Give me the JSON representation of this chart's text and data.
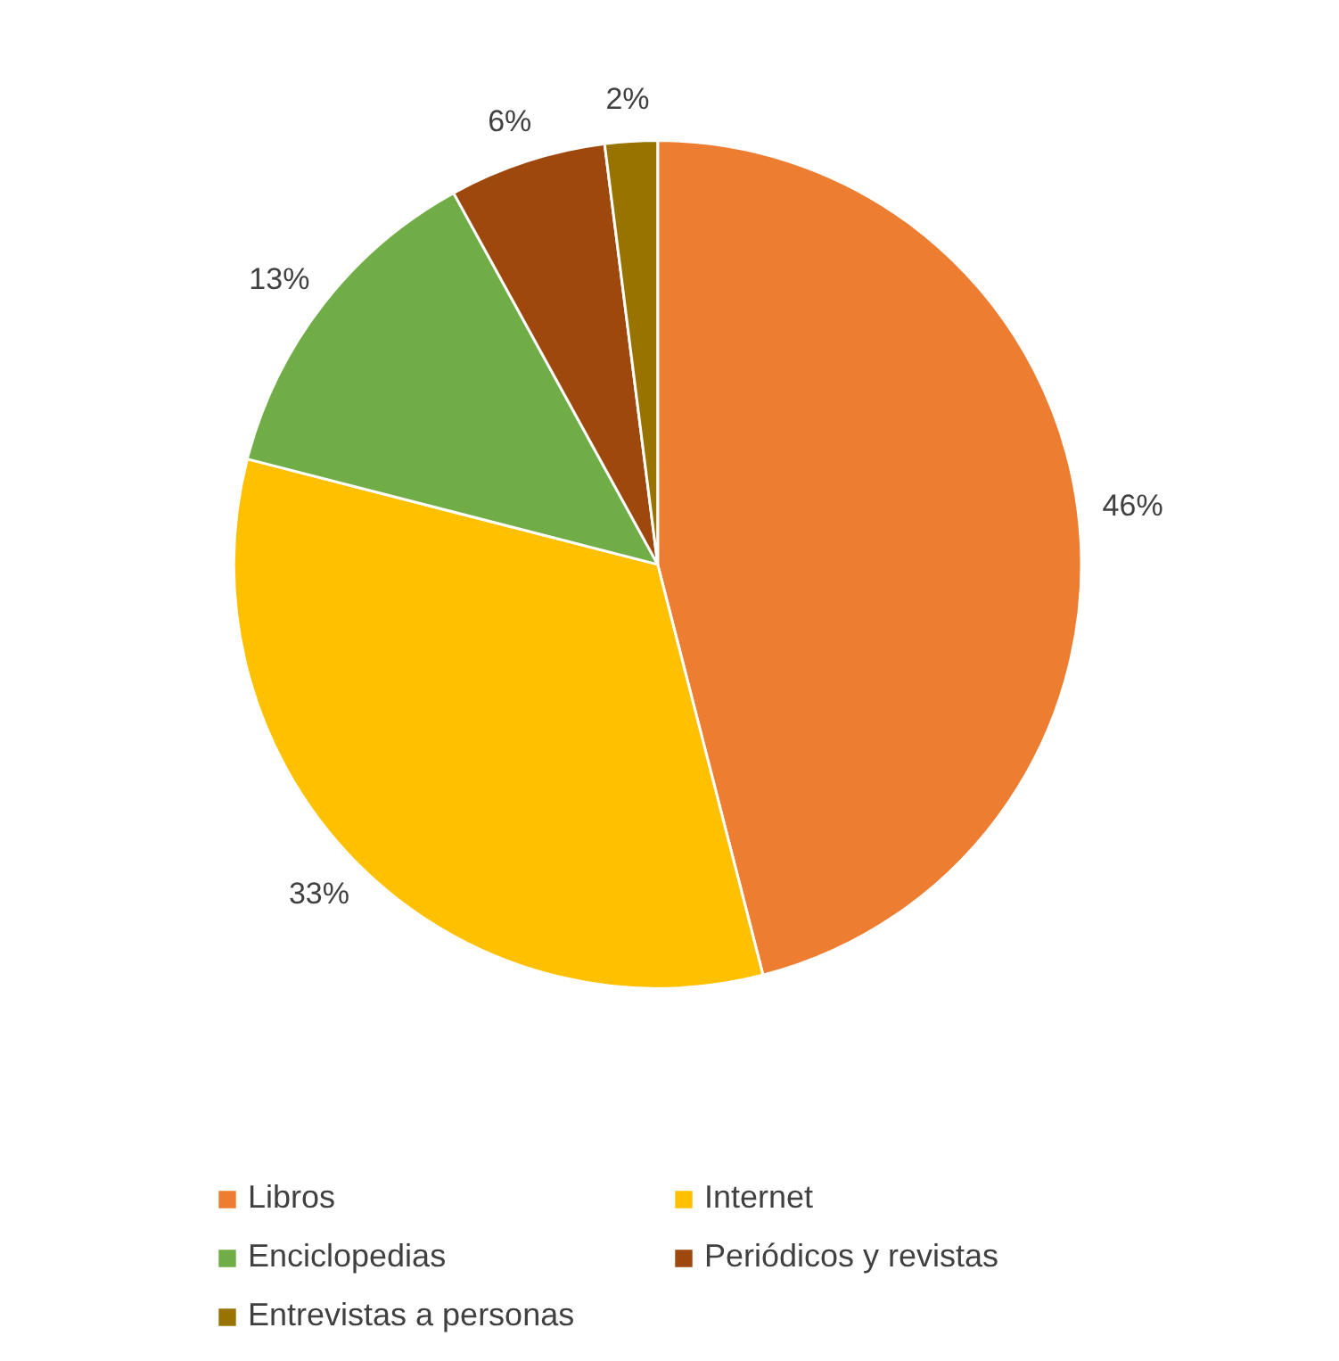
{
  "chart_data": {
    "type": "pie",
    "categories": [
      "Libros",
      "Internet",
      "Enciclopedias",
      "Periódicos y revistas",
      "Entrevistas a personas"
    ],
    "values": [
      46,
      33,
      13,
      6,
      2
    ],
    "colors": [
      "#ed7d31",
      "#ffc000",
      "#70ad47",
      "#9e480e",
      "#997300"
    ],
    "value_labels": [
      "46%",
      "33%",
      "13%",
      "6%",
      "2%"
    ],
    "legend": "bottom"
  }
}
